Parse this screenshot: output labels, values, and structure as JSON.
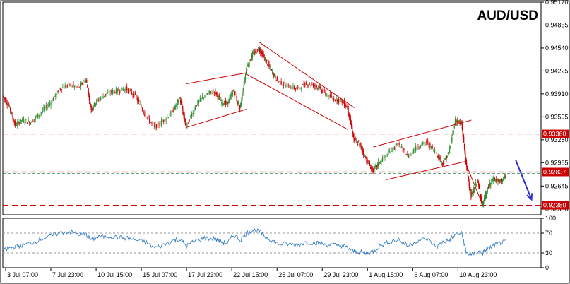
{
  "chart_data": [
    {
      "type": "candlestick",
      "title": "AUD/USD",
      "ylim": [
        0.9225,
        0.9517
      ],
      "y_ticks": [
        "0.95170",
        "0.94855",
        "0.94540",
        "0.94225",
        "0.93910",
        "0.93595",
        "0.93280",
        "0.92965",
        "0.92645",
        "0.92330"
      ],
      "y_tick_values": [
        0.9517,
        0.94855,
        0.9454,
        0.94225,
        0.9391,
        0.93595,
        0.9328,
        0.92965,
        0.92645,
        0.9233
      ],
      "x_ticks": [
        "3 Jul 07:00",
        "7 Jul 23:00",
        "10 Jul 15:00",
        "15 Jul 07:00",
        "17 Jul 23:00",
        "22 Jul 15:00",
        "25 Jul 07:00",
        "29 Jul 23:00",
        "1 Aug 15:00",
        "6 Aug 07:00",
        "10 Aug 23:00"
      ],
      "x_tick_positions": [
        0.0,
        0.0714,
        0.1429,
        0.2143,
        0.2857,
        0.3571,
        0.4286,
        0.5,
        0.5714,
        0.6429,
        0.7143
      ],
      "horizontal_levels": [
        {
          "label": "0.93360",
          "value": 0.9336,
          "style": "dashed",
          "color": "#cc0000"
        },
        {
          "label": "0.92837",
          "value": 0.92837,
          "style": "dashed",
          "color": "#cc0000"
        },
        {
          "label": "0.92380",
          "value": 0.9238,
          "style": "dashed",
          "color": "#cc0000"
        }
      ],
      "extra_lines": [
        {
          "value": 0.92815,
          "style": "dashed",
          "color": "#2e8b57"
        }
      ],
      "series": [
        {
          "kind": "ohlc_close_path",
          "points": [
            [
              0.0,
              0.9388
            ],
            [
              0.01,
              0.9375
            ],
            [
              0.02,
              0.9348
            ],
            [
              0.03,
              0.9355
            ],
            [
              0.045,
              0.9352
            ],
            [
              0.06,
              0.9365
            ],
            [
              0.075,
              0.9378
            ],
            [
              0.09,
              0.9398
            ],
            [
              0.105,
              0.9403
            ],
            [
              0.12,
              0.94
            ],
            [
              0.132,
              0.941
            ],
            [
              0.14,
              0.937
            ],
            [
              0.15,
              0.9382
            ],
            [
              0.165,
              0.9392
            ],
            [
              0.18,
              0.9395
            ],
            [
              0.195,
              0.9398
            ],
            [
              0.21,
              0.9388
            ],
            [
              0.225,
              0.9363
            ],
            [
              0.24,
              0.9345
            ],
            [
              0.255,
              0.9355
            ],
            [
              0.27,
              0.9368
            ],
            [
              0.28,
              0.9385
            ],
            [
              0.29,
              0.9345
            ],
            [
              0.305,
              0.9375
            ],
            [
              0.32,
              0.939
            ],
            [
              0.335,
              0.9395
            ],
            [
              0.345,
              0.938
            ],
            [
              0.355,
              0.9378
            ],
            [
              0.365,
              0.9395
            ],
            [
              0.375,
              0.937
            ],
            [
              0.385,
              0.9425
            ],
            [
              0.395,
              0.9445
            ],
            [
              0.405,
              0.9453
            ],
            [
              0.415,
              0.9438
            ],
            [
              0.425,
              0.9422
            ],
            [
              0.435,
              0.9408
            ],
            [
              0.45,
              0.9402
            ],
            [
              0.465,
              0.9398
            ],
            [
              0.48,
              0.9405
            ],
            [
              0.495,
              0.9402
            ],
            [
              0.505,
              0.9395
            ],
            [
              0.52,
              0.9385
            ],
            [
              0.535,
              0.9382
            ],
            [
              0.545,
              0.9372
            ],
            [
              0.555,
              0.9328
            ],
            [
              0.565,
              0.932
            ],
            [
              0.575,
              0.93
            ],
            [
              0.585,
              0.9285
            ],
            [
              0.595,
              0.9297
            ],
            [
              0.61,
              0.931
            ],
            [
              0.625,
              0.9322
            ],
            [
              0.64,
              0.9305
            ],
            [
              0.655,
              0.9318
            ],
            [
              0.67,
              0.9325
            ],
            [
              0.685,
              0.931
            ],
            [
              0.695,
              0.9295
            ],
            [
              0.705,
              0.931
            ],
            [
              0.715,
              0.9355
            ],
            [
              0.725,
              0.935
            ],
            [
              0.732,
              0.9295
            ],
            [
              0.74,
              0.925
            ],
            [
              0.75,
              0.9272
            ],
            [
              0.758,
              0.9238
            ],
            [
              0.765,
              0.9258
            ],
            [
              0.775,
              0.9275
            ],
            [
              0.785,
              0.927
            ],
            [
              0.795,
              0.9278
            ]
          ]
        }
      ],
      "annotations": {
        "channels": [
          {
            "name": "rising-channel-1",
            "upper": [
              [
                0.29,
                0.9405
              ],
              [
                0.385,
                0.942
              ]
            ],
            "lower": [
              [
                0.29,
                0.9345
              ],
              [
                0.385,
                0.937
              ]
            ]
          },
          {
            "name": "falling-channel",
            "upper": [
              [
                0.405,
                0.9462
              ],
              [
                0.555,
                0.9372
              ]
            ],
            "lower": [
              [
                0.385,
                0.9418
              ],
              [
                0.545,
                0.9342
              ]
            ]
          },
          {
            "name": "rising-channel-2",
            "upper": [
              [
                0.585,
                0.9318
              ],
              [
                0.74,
                0.9355
              ]
            ],
            "lower": [
              [
                0.605,
                0.9273
              ],
              [
                0.73,
                0.9298
              ]
            ]
          },
          {
            "name": "drop-line",
            "upper": [
              [
                0.73,
                0.9298
              ],
              [
                0.758,
                0.9238
              ]
            ],
            "lower": []
          }
        ],
        "arrow": {
          "from": [
            0.81,
            0.93
          ],
          "to": [
            0.835,
            0.9246
          ],
          "color": "#3333cc"
        }
      }
    },
    {
      "type": "line",
      "name": "rsi-panel",
      "ylim": [
        0,
        100
      ],
      "y_ticks": [
        "100",
        "70",
        "30",
        "0"
      ],
      "y_tick_values": [
        100,
        70,
        30,
        0
      ],
      "levels": [
        70,
        30
      ],
      "series": [
        {
          "color": "#3a7fc4",
          "values": [
            [
              0.0,
              33
            ],
            [
              0.01,
              40
            ],
            [
              0.02,
              43
            ],
            [
              0.03,
              45
            ],
            [
              0.045,
              50
            ],
            [
              0.06,
              58
            ],
            [
              0.075,
              64
            ],
            [
              0.09,
              71
            ],
            [
              0.105,
              73
            ],
            [
              0.12,
              68
            ],
            [
              0.132,
              67
            ],
            [
              0.14,
              55
            ],
            [
              0.15,
              62
            ],
            [
              0.165,
              64
            ],
            [
              0.18,
              62
            ],
            [
              0.195,
              60
            ],
            [
              0.21,
              56
            ],
            [
              0.225,
              52
            ],
            [
              0.24,
              40
            ],
            [
              0.255,
              47
            ],
            [
              0.27,
              56
            ],
            [
              0.28,
              57
            ],
            [
              0.29,
              44
            ],
            [
              0.305,
              55
            ],
            [
              0.32,
              60
            ],
            [
              0.335,
              58
            ],
            [
              0.345,
              52
            ],
            [
              0.355,
              50
            ],
            [
              0.365,
              67
            ],
            [
              0.375,
              56
            ],
            [
              0.385,
              70
            ],
            [
              0.395,
              76
            ],
            [
              0.405,
              73
            ],
            [
              0.415,
              62
            ],
            [
              0.425,
              55
            ],
            [
              0.435,
              48
            ],
            [
              0.45,
              48
            ],
            [
              0.465,
              46
            ],
            [
              0.48,
              52
            ],
            [
              0.495,
              50
            ],
            [
              0.505,
              48
            ],
            [
              0.52,
              46
            ],
            [
              0.535,
              45
            ],
            [
              0.545,
              40
            ],
            [
              0.555,
              32
            ],
            [
              0.565,
              32
            ],
            [
              0.575,
              28
            ],
            [
              0.585,
              34
            ],
            [
              0.595,
              44
            ],
            [
              0.61,
              52
            ],
            [
              0.625,
              57
            ],
            [
              0.64,
              44
            ],
            [
              0.655,
              55
            ],
            [
              0.67,
              58
            ],
            [
              0.685,
              42
            ],
            [
              0.695,
              52
            ],
            [
              0.705,
              56
            ],
            [
              0.715,
              67
            ],
            [
              0.725,
              70
            ],
            [
              0.732,
              30
            ],
            [
              0.74,
              25
            ],
            [
              0.75,
              33
            ],
            [
              0.758,
              30
            ],
            [
              0.765,
              38
            ],
            [
              0.775,
              44
            ],
            [
              0.785,
              50
            ],
            [
              0.795,
              52
            ]
          ]
        }
      ]
    }
  ],
  "colors": {
    "bull": "#2e8b2e",
    "bear": "#cc0000",
    "level_badge": "#cc0000",
    "grid_border": "#000000",
    "rsi_level": "#999999"
  }
}
